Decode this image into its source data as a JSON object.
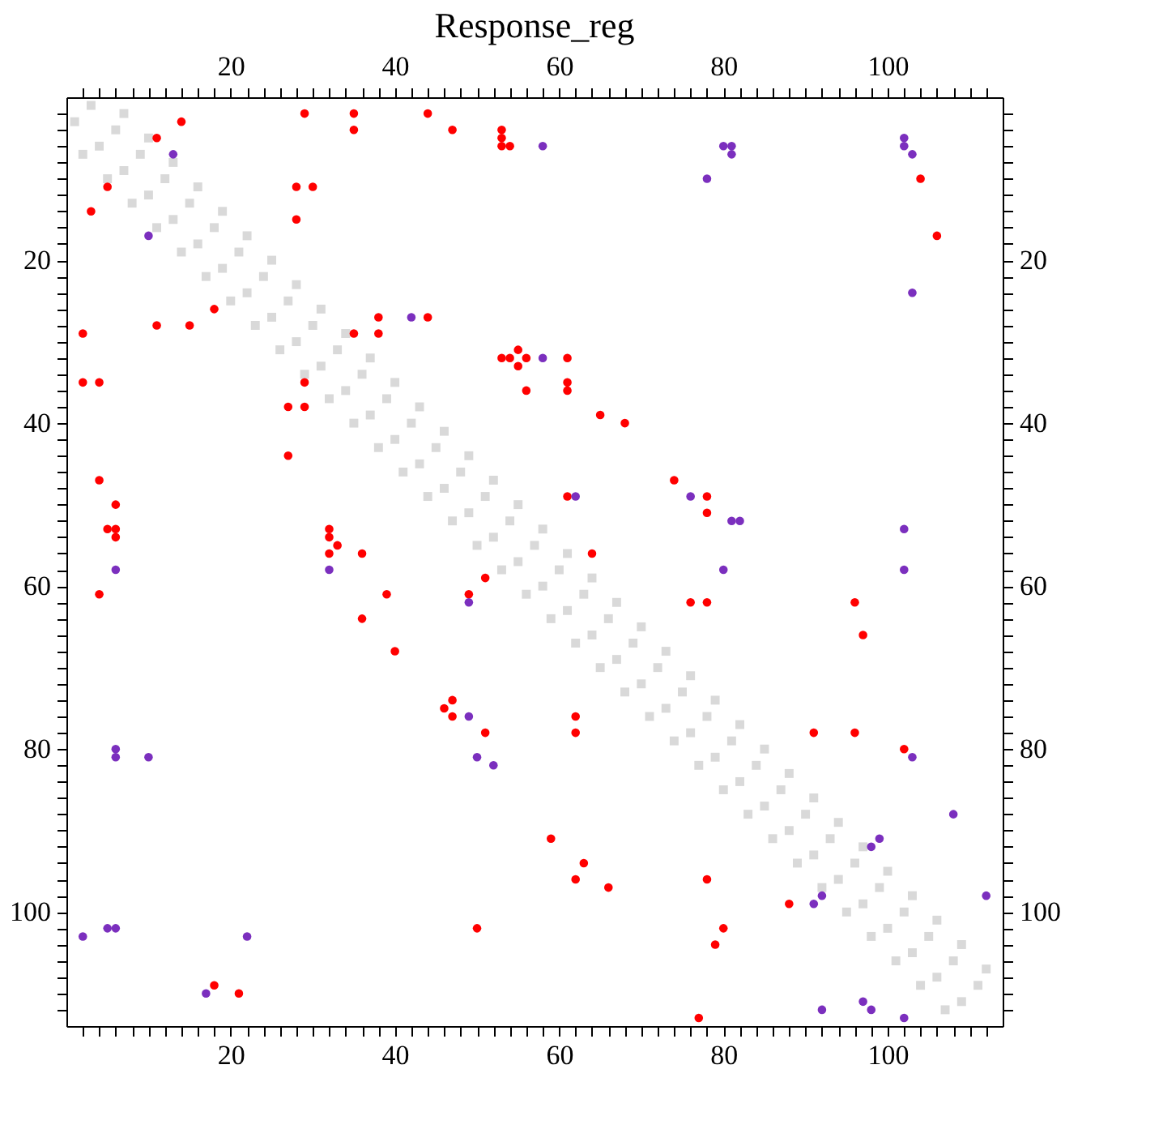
{
  "chart_data": {
    "type": "scatter",
    "title": "Response_reg",
    "xlim": [
      0,
      114
    ],
    "ylim": [
      114,
      0
    ],
    "grid": false,
    "xticks": [
      {
        "value": 2,
        "label": null
      },
      {
        "value": 4,
        "label": null
      },
      {
        "value": 6,
        "label": null
      },
      {
        "value": 8,
        "label": null
      },
      {
        "value": 10,
        "label": null
      },
      {
        "value": 12,
        "label": null
      },
      {
        "value": 14,
        "label": null
      },
      {
        "value": 16,
        "label": null
      },
      {
        "value": 18,
        "label": null
      },
      20,
      {
        "value": 22,
        "label": null
      },
      {
        "value": 24,
        "label": null
      },
      {
        "value": 26,
        "label": null
      },
      {
        "value": 28,
        "label": null
      },
      {
        "value": 30,
        "label": null
      },
      {
        "value": 32,
        "label": null
      },
      {
        "value": 34,
        "label": null
      },
      {
        "value": 36,
        "label": null
      },
      {
        "value": 38,
        "label": null
      },
      40,
      {
        "value": 42,
        "label": null
      },
      {
        "value": 44,
        "label": null
      },
      {
        "value": 46,
        "label": null
      },
      {
        "value": 48,
        "label": null
      },
      {
        "value": 50,
        "label": null
      },
      {
        "value": 52,
        "label": null
      },
      {
        "value": 54,
        "label": null
      },
      {
        "value": 56,
        "label": null
      },
      {
        "value": 58,
        "label": null
      },
      60,
      {
        "value": 62,
        "label": null
      },
      {
        "value": 64,
        "label": null
      },
      {
        "value": 66,
        "label": null
      },
      {
        "value": 68,
        "label": null
      },
      {
        "value": 70,
        "label": null
      },
      {
        "value": 72,
        "label": null
      },
      {
        "value": 74,
        "label": null
      },
      {
        "value": 76,
        "label": null
      },
      {
        "value": 78,
        "label": null
      },
      80,
      {
        "value": 82,
        "label": null
      },
      {
        "value": 84,
        "label": null
      },
      {
        "value": 86,
        "label": null
      },
      {
        "value": 88,
        "label": null
      },
      {
        "value": 90,
        "label": null
      },
      {
        "value": 92,
        "label": null
      },
      {
        "value": 94,
        "label": null
      },
      {
        "value": 96,
        "label": null
      },
      {
        "value": 98,
        "label": null
      },
      100,
      {
        "value": 102,
        "label": null
      },
      {
        "value": 104,
        "label": null
      },
      {
        "value": 106,
        "label": null
      },
      {
        "value": 108,
        "label": null
      },
      {
        "value": 110,
        "label": null
      },
      {
        "value": 112,
        "label": null
      }
    ],
    "x2lim": [
      0,
      114
    ],
    "x2ticks": [
      {
        "value": 2,
        "label": null
      },
      {
        "value": 4,
        "label": null
      },
      {
        "value": 6,
        "label": null
      },
      {
        "value": 8,
        "label": null
      },
      {
        "value": 10,
        "label": null
      },
      {
        "value": 12,
        "label": null
      },
      {
        "value": 14,
        "label": null
      },
      {
        "value": 16,
        "label": null
      },
      {
        "value": 18,
        "label": null
      },
      20,
      {
        "value": 22,
        "label": null
      },
      {
        "value": 24,
        "label": null
      },
      {
        "value": 26,
        "label": null
      },
      {
        "value": 28,
        "label": null
      },
      {
        "value": 30,
        "label": null
      },
      {
        "value": 32,
        "label": null
      },
      {
        "value": 34,
        "label": null
      },
      {
        "value": 36,
        "label": null
      },
      {
        "value": 38,
        "label": null
      },
      40,
      {
        "value": 42,
        "label": null
      },
      {
        "value": 44,
        "label": null
      },
      {
        "value": 46,
        "label": null
      },
      {
        "value": 48,
        "label": null
      },
      {
        "value": 50,
        "label": null
      },
      {
        "value": 52,
        "label": null
      },
      {
        "value": 54,
        "label": null
      },
      {
        "value": 56,
        "label": null
      },
      {
        "value": 58,
        "label": null
      },
      60,
      {
        "value": 62,
        "label": null
      },
      {
        "value": 64,
        "label": null
      },
      {
        "value": 66,
        "label": null
      },
      {
        "value": 68,
        "label": null
      },
      {
        "value": 70,
        "label": null
      },
      {
        "value": 72,
        "label": null
      },
      {
        "value": 74,
        "label": null
      },
      {
        "value": 76,
        "label": null
      },
      {
        "value": 78,
        "label": null
      },
      80,
      {
        "value": 82,
        "label": null
      },
      {
        "value": 84,
        "label": null
      },
      {
        "value": 86,
        "label": null
      },
      {
        "value": 88,
        "label": null
      },
      {
        "value": 90,
        "label": null
      },
      {
        "value": 92,
        "label": null
      },
      {
        "value": 94,
        "label": null
      },
      {
        "value": 96,
        "label": null
      },
      {
        "value": 98,
        "label": null
      },
      100,
      {
        "value": 102,
        "label": null
      },
      {
        "value": 104,
        "label": null
      },
      {
        "value": 106,
        "label": null
      },
      {
        "value": 108,
        "label": null
      },
      {
        "value": 110,
        "label": null
      },
      {
        "value": 112,
        "label": null
      }
    ],
    "yticks": [
      {
        "value": 2,
        "label": null
      },
      {
        "value": 4,
        "label": null
      },
      {
        "value": 6,
        "label": null
      },
      {
        "value": 8,
        "label": null
      },
      {
        "value": 10,
        "label": null
      },
      {
        "value": 12,
        "label": null
      },
      {
        "value": 14,
        "label": null
      },
      {
        "value": 16,
        "label": null
      },
      {
        "value": 18,
        "label": null
      },
      20,
      {
        "value": 22,
        "label": null
      },
      {
        "value": 24,
        "label": null
      },
      {
        "value": 26,
        "label": null
      },
      {
        "value": 28,
        "label": null
      },
      {
        "value": 30,
        "label": null
      },
      {
        "value": 32,
        "label": null
      },
      {
        "value": 34,
        "label": null
      },
      {
        "value": 36,
        "label": null
      },
      {
        "value": 38,
        "label": null
      },
      40,
      {
        "value": 42,
        "label": null
      },
      {
        "value": 44,
        "label": null
      },
      {
        "value": 46,
        "label": null
      },
      {
        "value": 48,
        "label": null
      },
      {
        "value": 50,
        "label": null
      },
      {
        "value": 52,
        "label": null
      },
      {
        "value": 54,
        "label": null
      },
      {
        "value": 56,
        "label": null
      },
      {
        "value": 58,
        "label": null
      },
      60,
      {
        "value": 62,
        "label": null
      },
      {
        "value": 64,
        "label": null
      },
      {
        "value": 66,
        "label": null
      },
      {
        "value": 68,
        "label": null
      },
      {
        "value": 70,
        "label": null
      },
      {
        "value": 72,
        "label": null
      },
      {
        "value": 74,
        "label": null
      },
      {
        "value": 76,
        "label": null
      },
      {
        "value": 78,
        "label": null
      },
      80,
      {
        "value": 82,
        "label": null
      },
      {
        "value": 84,
        "label": null
      },
      {
        "value": 86,
        "label": null
      },
      {
        "value": 88,
        "label": null
      },
      {
        "value": 90,
        "label": null
      },
      {
        "value": 92,
        "label": null
      },
      {
        "value": 94,
        "label": null
      },
      {
        "value": 96,
        "label": null
      },
      {
        "value": 98,
        "label": null
      },
      100,
      {
        "value": 102,
        "label": null
      },
      {
        "value": 104,
        "label": null
      },
      {
        "value": 106,
        "label": null
      },
      {
        "value": 108,
        "label": null
      },
      {
        "value": 110,
        "label": null
      },
      {
        "value": 112,
        "label": null
      }
    ],
    "y2lim": [
      114,
      0
    ],
    "y2ticks": [
      {
        "value": 2,
        "label": null
      },
      {
        "value": 4,
        "label": null
      },
      {
        "value": 6,
        "label": null
      },
      {
        "value": 8,
        "label": null
      },
      {
        "value": 10,
        "label": null
      },
      {
        "value": 12,
        "label": null
      },
      {
        "value": 14,
        "label": null
      },
      {
        "value": 16,
        "label": null
      },
      {
        "value": 18,
        "label": null
      },
      20,
      {
        "value": 22,
        "label": null
      },
      {
        "value": 24,
        "label": null
      },
      {
        "value": 26,
        "label": null
      },
      {
        "value": 28,
        "label": null
      },
      {
        "value": 30,
        "label": null
      },
      {
        "value": 32,
        "label": null
      },
      {
        "value": 34,
        "label": null
      },
      {
        "value": 36,
        "label": null
      },
      {
        "value": 38,
        "label": null
      },
      40,
      {
        "value": 42,
        "label": null
      },
      {
        "value": 44,
        "label": null
      },
      {
        "value": 46,
        "label": null
      },
      {
        "value": 48,
        "label": null
      },
      {
        "value": 50,
        "label": null
      },
      {
        "value": 52,
        "label": null
      },
      {
        "value": 54,
        "label": null
      },
      {
        "value": 56,
        "label": null
      },
      {
        "value": 58,
        "label": null
      },
      60,
      {
        "value": 62,
        "label": null
      },
      {
        "value": 64,
        "label": null
      },
      {
        "value": 66,
        "label": null
      },
      {
        "value": 68,
        "label": null
      },
      {
        "value": 70,
        "label": null
      },
      {
        "value": 72,
        "label": null
      },
      {
        "value": 74,
        "label": null
      },
      {
        "value": 76,
        "label": null
      },
      {
        "value": 78,
        "label": null
      },
      80,
      {
        "value": 82,
        "label": null
      },
      {
        "value": 84,
        "label": null
      },
      {
        "value": 86,
        "label": null
      },
      {
        "value": 88,
        "label": null
      },
      {
        "value": 90,
        "label": null
      },
      {
        "value": 92,
        "label": null
      },
      {
        "value": 94,
        "label": null
      },
      {
        "value": 96,
        "label": null
      },
      {
        "value": 98,
        "label": null
      },
      100,
      {
        "value": 102,
        "label": null
      },
      {
        "value": 104,
        "label": null
      },
      {
        "value": 106,
        "label": null
      },
      {
        "value": 108,
        "label": null
      },
      {
        "value": 110,
        "label": null
      },
      {
        "value": 112,
        "label": null
      }
    ],
    "series": [
      {
        "color": "#d9d9d9",
        "marker": "square",
        "x": [
          1,
          4,
          7,
          10,
          13,
          16,
          19,
          22,
          25,
          28,
          31,
          34,
          37,
          40,
          43,
          46,
          49,
          52,
          55,
          58,
          61,
          64,
          67,
          70,
          73,
          76,
          79,
          82,
          85,
          88,
          91,
          94,
          97,
          100,
          103,
          106,
          109,
          3,
          6,
          9,
          12,
          15,
          18,
          21,
          24,
          27,
          30,
          33,
          36,
          39,
          42,
          45,
          48,
          51,
          54,
          57,
          60,
          63,
          66,
          69,
          72,
          75,
          78,
          81,
          84,
          87,
          90,
          93,
          96,
          99,
          102,
          105,
          108,
          111,
          2,
          5,
          8,
          11,
          14,
          17,
          20,
          23,
          26,
          29,
          32,
          35,
          38,
          41,
          44,
          47,
          50,
          53,
          56,
          59,
          62,
          65,
          68,
          71,
          74,
          77,
          80,
          83,
          86,
          89,
          92,
          95,
          98,
          101,
          104,
          107,
          7,
          10,
          13,
          16,
          19,
          22,
          25,
          28,
          31,
          34,
          37,
          40,
          43,
          46,
          49,
          52,
          55,
          58,
          61,
          64,
          67,
          70,
          73,
          76,
          79,
          82,
          85,
          88,
          91,
          94,
          97,
          100,
          103,
          106,
          109,
          112
        ],
        "values": [
          3,
          6,
          9,
          12,
          15,
          18,
          21,
          24,
          27,
          30,
          33,
          36,
          39,
          42,
          45,
          48,
          51,
          54,
          57,
          60,
          63,
          66,
          69,
          72,
          75,
          78,
          81,
          84,
          87,
          90,
          93,
          96,
          99,
          102,
          105,
          108,
          111,
          1,
          4,
          7,
          10,
          13,
          16,
          19,
          22,
          25,
          28,
          31,
          34,
          37,
          40,
          43,
          46,
          49,
          52,
          55,
          58,
          61,
          64,
          67,
          70,
          73,
          76,
          79,
          82,
          85,
          88,
          91,
          94,
          97,
          100,
          103,
          106,
          109,
          7,
          10,
          13,
          16,
          19,
          22,
          25,
          28,
          31,
          34,
          37,
          40,
          43,
          46,
          49,
          52,
          55,
          58,
          61,
          64,
          67,
          70,
          73,
          76,
          79,
          82,
          85,
          88,
          91,
          94,
          97,
          100,
          103,
          106,
          109,
          112,
          2,
          5,
          8,
          11,
          14,
          17,
          20,
          23,
          26,
          29,
          32,
          35,
          38,
          41,
          44,
          47,
          50,
          53,
          56,
          59,
          62,
          65,
          68,
          71,
          74,
          77,
          80,
          83,
          86,
          89,
          92,
          95,
          98,
          101,
          104,
          107
        ]
      },
      {
        "color": "#ff0000",
        "marker": "circle",
        "x": [
          14,
          29,
          35,
          35,
          44,
          47,
          53,
          53,
          53,
          54,
          11,
          5,
          28,
          30,
          3,
          28,
          18,
          11,
          15,
          2,
          38,
          38,
          44,
          35,
          53,
          54,
          56,
          55,
          55,
          56,
          2,
          4,
          29,
          27,
          29,
          104,
          106,
          61,
          61,
          61,
          27,
          4,
          6,
          5,
          6,
          6,
          32,
          32,
          33,
          32,
          36,
          4,
          39,
          49,
          51,
          36,
          40,
          47,
          46,
          65,
          68,
          74,
          61,
          78,
          78,
          64,
          76,
          78,
          96,
          97,
          62,
          47,
          51,
          50,
          18,
          21,
          62,
          91,
          96,
          102,
          59,
          63,
          62,
          66,
          78,
          88,
          80,
          79,
          77
        ],
        "values": [
          3,
          2,
          2,
          4,
          2,
          4,
          4,
          5,
          6,
          6,
          5,
          11,
          11,
          11,
          14,
          15,
          26,
          28,
          28,
          29,
          27,
          29,
          27,
          29,
          32,
          32,
          32,
          31,
          33,
          36,
          35,
          35,
          35,
          38,
          38,
          10,
          17,
          32,
          35,
          36,
          44,
          47,
          50,
          53,
          53,
          54,
          53,
          54,
          55,
          56,
          56,
          61,
          61,
          61,
          59,
          64,
          68,
          74,
          75,
          39,
          40,
          47,
          49,
          49,
          51,
          56,
          62,
          62,
          62,
          66,
          76,
          76,
          78,
          102,
          109,
          110,
          78,
          78,
          78,
          80,
          91,
          94,
          96,
          97,
          96,
          99,
          102,
          104,
          113
        ]
      },
      {
        "color": "#7b2fbe",
        "marker": "circle",
        "x": [
          13,
          10,
          42,
          58,
          58,
          80,
          81,
          81,
          78,
          102,
          102,
          103,
          103,
          6,
          32,
          49,
          62,
          76,
          81,
          82,
          102,
          102,
          80,
          49,
          50,
          52,
          6,
          6,
          10,
          2,
          5,
          6,
          22,
          17,
          103,
          108,
          99,
          98,
          91,
          92,
          112,
          92,
          97,
          98,
          102
        ],
        "values": [
          7,
          17,
          27,
          32,
          6,
          6,
          6,
          7,
          10,
          5,
          6,
          7,
          24,
          58,
          58,
          62,
          49,
          49,
          52,
          52,
          53,
          58,
          58,
          76,
          81,
          82,
          80,
          81,
          81,
          103,
          102,
          102,
          103,
          110,
          81,
          88,
          91,
          92,
          99,
          98,
          98,
          112,
          111,
          112,
          113
        ]
      }
    ]
  }
}
